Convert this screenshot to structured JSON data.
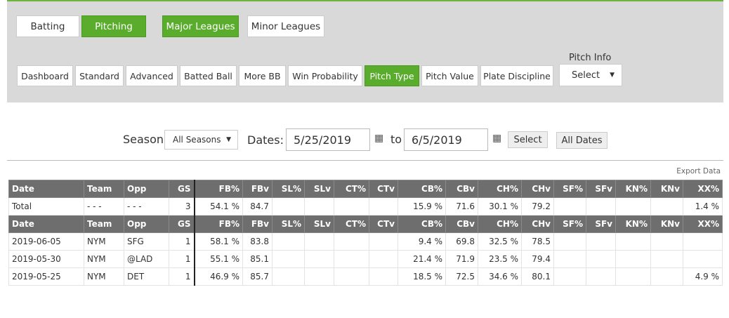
{
  "top_tabs": [
    "Batting",
    "Pitching",
    "Major Leagues",
    "Minor Leagues"
  ],
  "sub_tabs": [
    "Dashboard",
    "Standard",
    "Advanced",
    "Batted Ball",
    "More BB",
    "Win Probability",
    "Pitch Type",
    "Pitch Value",
    "Plate Discipline"
  ],
  "pitch_info": {
    "label": "Pitch Info",
    "value": "Select"
  },
  "filters": {
    "season_label": "Season:",
    "season_value": "All Seasons",
    "dates_label": "Dates:",
    "from": "5/25/2019",
    "to_label": "to",
    "to": "6/5/2019",
    "select": "Select",
    "all_dates": "All Dates"
  },
  "export": "Export Data",
  "columns": [
    "Date",
    "Team",
    "Opp",
    "GS",
    "FB%",
    "FBv",
    "SL%",
    "SLv",
    "CT%",
    "CTv",
    "CB%",
    "CBv",
    "CH%",
    "CHv",
    "SF%",
    "SFv",
    "KN%",
    "KNv",
    "XX%"
  ],
  "total": [
    "Total",
    "- - -",
    "- - -",
    "3",
    "54.1 %",
    "84.7",
    "",
    "",
    "",
    "",
    "15.9 %",
    "71.6",
    "30.1 %",
    "79.2",
    "",
    "",
    "",
    "",
    "1.4 %"
  ],
  "rows": [
    [
      "2019-06-05",
      "NYM",
      "SFG",
      "1",
      "58.1 %",
      "83.8",
      "",
      "",
      "",
      "",
      "9.4 %",
      "69.8",
      "32.5 %",
      "78.5",
      "",
      "",
      "",
      "",
      ""
    ],
    [
      "2019-05-30",
      "NYM",
      "@LAD",
      "1",
      "55.1 %",
      "85.1",
      "",
      "",
      "",
      "",
      "21.4 %",
      "71.9",
      "23.5 %",
      "79.4",
      "",
      "",
      "",
      "",
      ""
    ],
    [
      "2019-05-25",
      "NYM",
      "DET",
      "1",
      "46.9 %",
      "85.7",
      "",
      "",
      "",
      "",
      "18.5 %",
      "72.5",
      "34.6 %",
      "80.1",
      "",
      "",
      "",
      "",
      "4.9 %"
    ]
  ]
}
